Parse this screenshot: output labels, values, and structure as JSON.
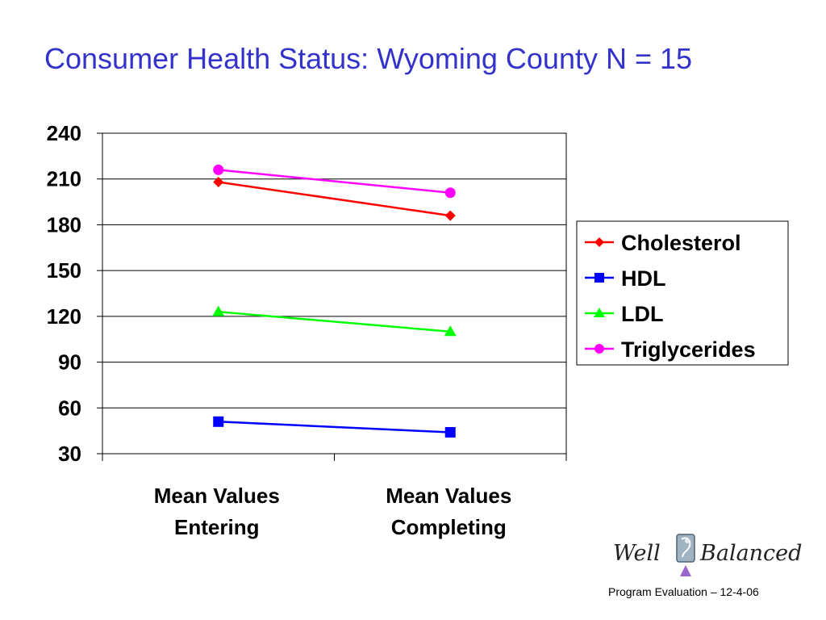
{
  "slide": {
    "title": "Consumer Health Status: Wyoming County N = 15",
    "footer": "Program Evaluation – 12-4-06",
    "logo": {
      "left": "Well",
      "right": "Balanced"
    }
  },
  "chart_data": {
    "type": "line",
    "title": "Consumer Health Status: Wyoming County N = 15",
    "categories": [
      [
        "Mean Values",
        "Entering"
      ],
      [
        "Mean Values",
        "Completing"
      ]
    ],
    "series": [
      {
        "name": "Cholesterol",
        "values": [
          208,
          186
        ],
        "color": "#ff0000",
        "marker": "diamond"
      },
      {
        "name": "HDL",
        "values": [
          51,
          44
        ],
        "color": "#0000ff",
        "marker": "square"
      },
      {
        "name": "LDL",
        "values": [
          123,
          110
        ],
        "color": "#00ff00",
        "marker": "triangle"
      },
      {
        "name": "Triglycerides",
        "values": [
          216,
          201
        ],
        "color": "#ff00ff",
        "marker": "circle"
      }
    ],
    "ylim": [
      30,
      240
    ],
    "yticks": [
      30,
      60,
      90,
      120,
      150,
      180,
      210,
      240
    ],
    "grid": true,
    "legend": "right",
    "xlabel": "",
    "ylabel": ""
  }
}
